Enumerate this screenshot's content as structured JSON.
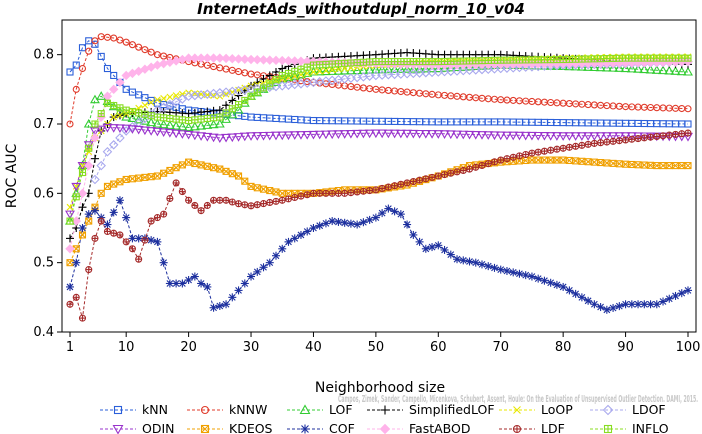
{
  "chart_data": {
    "type": "line",
    "title": "InternetAds_withoutdupl_norm_10_v04",
    "xlabel": "Neighborhood size",
    "ylabel": "ROC AUC",
    "xlim": [
      1,
      100
    ],
    "ylim": [
      0.4,
      0.85
    ],
    "xticks": [
      1,
      10,
      20,
      30,
      40,
      50,
      60,
      70,
      80,
      90,
      100
    ],
    "yticks": [
      0.4,
      0.5,
      0.6,
      0.7,
      0.8
    ],
    "grid": false,
    "legend_position": "bottom",
    "credit": "Campos, Zimek, Sander, Campello, Micenkova, Schubert, Assent, Houle: On the Evaluation of Unsupervised Outlier Detection. DAMI, 2015.",
    "series": [
      {
        "name": "kNN",
        "color": "#2b5fd9",
        "marker": "square",
        "points": [
          [
            1,
            0.775
          ],
          [
            2,
            0.785
          ],
          [
            3,
            0.81
          ],
          [
            4,
            0.82
          ],
          [
            5,
            0.815
          ],
          [
            7,
            0.78
          ],
          [
            10,
            0.75
          ],
          [
            15,
            0.73
          ],
          [
            20,
            0.72
          ],
          [
            30,
            0.71
          ],
          [
            40,
            0.705
          ],
          [
            50,
            0.704
          ],
          [
            60,
            0.703
          ],
          [
            70,
            0.703
          ],
          [
            80,
            0.702
          ],
          [
            90,
            0.701
          ],
          [
            100,
            0.7
          ]
        ]
      },
      {
        "name": "kNNW",
        "color": "#e03a2a",
        "marker": "circle",
        "points": [
          [
            1,
            0.7
          ],
          [
            2,
            0.75
          ],
          [
            3,
            0.78
          ],
          [
            4,
            0.805
          ],
          [
            5,
            0.82
          ],
          [
            6,
            0.826
          ],
          [
            8,
            0.824
          ],
          [
            10,
            0.818
          ],
          [
            15,
            0.8
          ],
          [
            20,
            0.79
          ],
          [
            30,
            0.772
          ],
          [
            40,
            0.76
          ],
          [
            50,
            0.75
          ],
          [
            60,
            0.742
          ],
          [
            70,
            0.735
          ],
          [
            80,
            0.73
          ],
          [
            90,
            0.725
          ],
          [
            100,
            0.722
          ]
        ]
      },
      {
        "name": "LOF",
        "color": "#33cc33",
        "marker": "triangle",
        "points": [
          [
            1,
            0.56
          ],
          [
            2,
            0.6
          ],
          [
            3,
            0.64
          ],
          [
            4,
            0.7
          ],
          [
            5,
            0.735
          ],
          [
            6,
            0.74
          ],
          [
            8,
            0.725
          ],
          [
            10,
            0.71
          ],
          [
            15,
            0.7
          ],
          [
            20,
            0.695
          ],
          [
            25,
            0.7
          ],
          [
            28,
            0.72
          ],
          [
            30,
            0.74
          ],
          [
            35,
            0.765
          ],
          [
            40,
            0.775
          ],
          [
            50,
            0.778
          ],
          [
            60,
            0.78
          ],
          [
            70,
            0.785
          ],
          [
            80,
            0.783
          ],
          [
            90,
            0.78
          ],
          [
            100,
            0.775
          ]
        ]
      },
      {
        "name": "SimplifiedLOF",
        "color": "#000000",
        "marker": "plus",
        "points": [
          [
            1,
            0.535
          ],
          [
            2,
            0.55
          ],
          [
            3,
            0.58
          ],
          [
            4,
            0.6
          ],
          [
            5,
            0.65
          ],
          [
            6,
            0.69
          ],
          [
            8,
            0.71
          ],
          [
            10,
            0.715
          ],
          [
            15,
            0.718
          ],
          [
            20,
            0.715
          ],
          [
            25,
            0.72
          ],
          [
            30,
            0.755
          ],
          [
            35,
            0.78
          ],
          [
            40,
            0.795
          ],
          [
            50,
            0.8
          ],
          [
            55,
            0.803
          ],
          [
            60,
            0.8
          ],
          [
            70,
            0.8
          ],
          [
            80,
            0.795
          ],
          [
            90,
            0.79
          ],
          [
            100,
            0.786
          ]
        ]
      },
      {
        "name": "LoOP",
        "color": "#e8e800",
        "marker": "x",
        "points": [
          [
            1,
            0.58
          ],
          [
            3,
            0.64
          ],
          [
            5,
            0.68
          ],
          [
            8,
            0.71
          ],
          [
            10,
            0.715
          ],
          [
            15,
            0.735
          ],
          [
            20,
            0.745
          ],
          [
            25,
            0.74
          ],
          [
            30,
            0.755
          ],
          [
            40,
            0.775
          ],
          [
            50,
            0.785
          ],
          [
            60,
            0.79
          ],
          [
            70,
            0.792
          ],
          [
            80,
            0.795
          ],
          [
            90,
            0.797
          ],
          [
            100,
            0.797
          ]
        ]
      },
      {
        "name": "LDOF",
        "color": "#a9a9ee",
        "marker": "diamond",
        "points": [
          [
            5,
            0.62
          ],
          [
            7,
            0.66
          ],
          [
            10,
            0.69
          ],
          [
            15,
            0.72
          ],
          [
            20,
            0.74
          ],
          [
            25,
            0.745
          ],
          [
            30,
            0.75
          ],
          [
            40,
            0.76
          ],
          [
            50,
            0.77
          ],
          [
            60,
            0.775
          ],
          [
            70,
            0.78
          ],
          [
            80,
            0.785
          ],
          [
            90,
            0.787
          ],
          [
            100,
            0.79
          ]
        ]
      },
      {
        "name": "ODIN",
        "color": "#9933cc",
        "marker": "triangle-down",
        "points": [
          [
            1,
            0.57
          ],
          [
            2,
            0.61
          ],
          [
            3,
            0.64
          ],
          [
            4,
            0.67
          ],
          [
            5,
            0.69
          ],
          [
            7,
            0.695
          ],
          [
            10,
            0.694
          ],
          [
            20,
            0.685
          ],
          [
            25,
            0.68
          ],
          [
            30,
            0.683
          ],
          [
            40,
            0.685
          ],
          [
            50,
            0.687
          ],
          [
            60,
            0.686
          ],
          [
            70,
            0.684
          ],
          [
            80,
            0.683
          ],
          [
            90,
            0.683
          ],
          [
            100,
            0.682
          ]
        ]
      },
      {
        "name": "KDEOS",
        "color": "#f0a000",
        "marker": "square-x",
        "points": [
          [
            1,
            0.5
          ],
          [
            2,
            0.52
          ],
          [
            3,
            0.54
          ],
          [
            4,
            0.56
          ],
          [
            5,
            0.58
          ],
          [
            6,
            0.6
          ],
          [
            7,
            0.61
          ],
          [
            10,
            0.62
          ],
          [
            15,
            0.625
          ],
          [
            20,
            0.645
          ],
          [
            25,
            0.635
          ],
          [
            28,
            0.625
          ],
          [
            30,
            0.61
          ],
          [
            35,
            0.6
          ],
          [
            40,
            0.6
          ],
          [
            45,
            0.605
          ],
          [
            50,
            0.605
          ],
          [
            55,
            0.612
          ],
          [
            60,
            0.625
          ],
          [
            65,
            0.64
          ],
          [
            70,
            0.645
          ],
          [
            75,
            0.648
          ],
          [
            80,
            0.648
          ],
          [
            85,
            0.645
          ],
          [
            90,
            0.642
          ],
          [
            95,
            0.64
          ],
          [
            100,
            0.64
          ]
        ]
      },
      {
        "name": "COF",
        "color": "#1c2f9e",
        "marker": "star",
        "points": [
          [
            1,
            0.465
          ],
          [
            2,
            0.5
          ],
          [
            3,
            0.55
          ],
          [
            4,
            0.57
          ],
          [
            5,
            0.575
          ],
          [
            7,
            0.555
          ],
          [
            9,
            0.59
          ],
          [
            10,
            0.565
          ],
          [
            11,
            0.535
          ],
          [
            13,
            0.535
          ],
          [
            15,
            0.53
          ],
          [
            17,
            0.47
          ],
          [
            19,
            0.47
          ],
          [
            21,
            0.48
          ],
          [
            22,
            0.47
          ],
          [
            23,
            0.465
          ],
          [
            24,
            0.435
          ],
          [
            26,
            0.44
          ],
          [
            28,
            0.46
          ],
          [
            30,
            0.48
          ],
          [
            33,
            0.5
          ],
          [
            36,
            0.53
          ],
          [
            40,
            0.55
          ],
          [
            43,
            0.56
          ],
          [
            47,
            0.555
          ],
          [
            50,
            0.565
          ],
          [
            52,
            0.578
          ],
          [
            54,
            0.57
          ],
          [
            56,
            0.54
          ],
          [
            58,
            0.52
          ],
          [
            60,
            0.525
          ],
          [
            63,
            0.505
          ],
          [
            66,
            0.5
          ],
          [
            70,
            0.49
          ],
          [
            75,
            0.48
          ],
          [
            80,
            0.465
          ],
          [
            85,
            0.44
          ],
          [
            87,
            0.432
          ],
          [
            90,
            0.44
          ],
          [
            95,
            0.44
          ],
          [
            100,
            0.46
          ]
        ]
      },
      {
        "name": "FastABOD",
        "color": "#ffb3ea",
        "marker": "diamond-filled",
        "points": [
          [
            1,
            0.52
          ],
          [
            3,
            0.6
          ],
          [
            5,
            0.68
          ],
          [
            7,
            0.74
          ],
          [
            10,
            0.77
          ],
          [
            15,
            0.785
          ],
          [
            20,
            0.795
          ],
          [
            25,
            0.795
          ],
          [
            30,
            0.793
          ],
          [
            40,
            0.79
          ],
          [
            50,
            0.787
          ],
          [
            60,
            0.785
          ],
          [
            70,
            0.786
          ],
          [
            80,
            0.787
          ],
          [
            90,
            0.788
          ],
          [
            100,
            0.79
          ]
        ]
      },
      {
        "name": "LDF",
        "color": "#a52a2a",
        "marker": "circle-plus",
        "points": [
          [
            1,
            0.44
          ],
          [
            2,
            0.45
          ],
          [
            3,
            0.42
          ],
          [
            4,
            0.49
          ],
          [
            5,
            0.535
          ],
          [
            6,
            0.56
          ],
          [
            7,
            0.545
          ],
          [
            9,
            0.54
          ],
          [
            11,
            0.52
          ],
          [
            12,
            0.505
          ],
          [
            14,
            0.56
          ],
          [
            16,
            0.57
          ],
          [
            18,
            0.615
          ],
          [
            20,
            0.59
          ],
          [
            22,
            0.575
          ],
          [
            24,
            0.59
          ],
          [
            26,
            0.59
          ],
          [
            28,
            0.585
          ],
          [
            30,
            0.582
          ],
          [
            35,
            0.59
          ],
          [
            40,
            0.6
          ],
          [
            45,
            0.6
          ],
          [
            50,
            0.605
          ],
          [
            55,
            0.615
          ],
          [
            60,
            0.625
          ],
          [
            65,
            0.635
          ],
          [
            70,
            0.648
          ],
          [
            75,
            0.658
          ],
          [
            80,
            0.665
          ],
          [
            85,
            0.672
          ],
          [
            90,
            0.677
          ],
          [
            95,
            0.682
          ],
          [
            100,
            0.687
          ]
        ]
      },
      {
        "name": "INFLO",
        "color": "#88dd22",
        "marker": "square-plus",
        "points": [
          [
            1,
            0.56
          ],
          [
            3,
            0.63
          ],
          [
            5,
            0.7
          ],
          [
            7,
            0.73
          ],
          [
            10,
            0.72
          ],
          [
            15,
            0.71
          ],
          [
            20,
            0.705
          ],
          [
            25,
            0.71
          ],
          [
            30,
            0.74
          ],
          [
            35,
            0.77
          ],
          [
            40,
            0.785
          ],
          [
            50,
            0.79
          ],
          [
            60,
            0.79
          ],
          [
            70,
            0.792
          ],
          [
            80,
            0.793
          ],
          [
            90,
            0.795
          ],
          [
            100,
            0.795
          ]
        ]
      }
    ]
  }
}
